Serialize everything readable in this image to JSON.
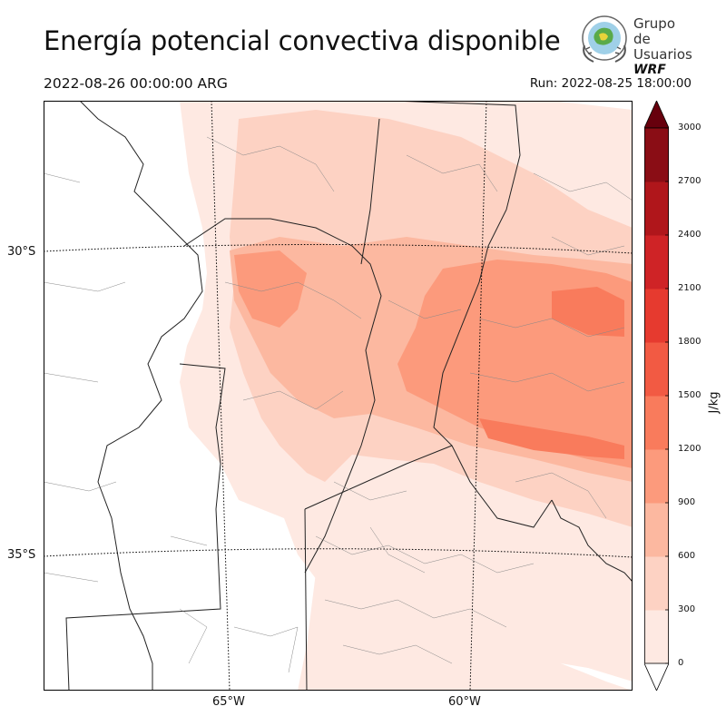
{
  "header": {
    "title": "Energía potencial convectiva disponible",
    "valid_time": "2022-08-26 00:00:00 ARG",
    "run_time": "Run: 2022-08-25 18:00:00"
  },
  "logo": {
    "line1": "Grupo de",
    "line2": "Usuarios",
    "line3": "WRF"
  },
  "map": {
    "lat_labels": [
      "30°S",
      "35°S"
    ],
    "lon_labels": [
      "65°W",
      "60°W"
    ]
  },
  "colorbar": {
    "unit": "J/kg",
    "ticks": [
      "0",
      "300",
      "600",
      "900",
      "1200",
      "1500",
      "1800",
      "2100",
      "2400",
      "2700",
      "3000"
    ],
    "levels": [
      0,
      300,
      600,
      900,
      1200,
      1500,
      1800,
      2100,
      2400,
      2700,
      3000
    ],
    "colors": [
      "#fee9e2",
      "#fdd2c3",
      "#fcb8a0",
      "#fc9a7c",
      "#f97b5c",
      "#f25a43",
      "#e63a2f",
      "#cf2326",
      "#b0161b",
      "#8a0d15"
    ],
    "extend_under_color": "#ffffff",
    "extend_over_color": "#67000d"
  },
  "chart_data": {
    "type": "heatmap",
    "title": "Energía potencial convectiva disponible",
    "variable_unit": "J/kg",
    "value_range": [
      0,
      3000
    ],
    "color_levels": [
      0,
      300,
      600,
      900,
      1200,
      1500,
      1800,
      2100,
      2400,
      2700,
      3000
    ],
    "lat_ticks": [
      "30°S",
      "35°S"
    ],
    "lon_ticks": [
      "65°W",
      "60°W"
    ]
  }
}
